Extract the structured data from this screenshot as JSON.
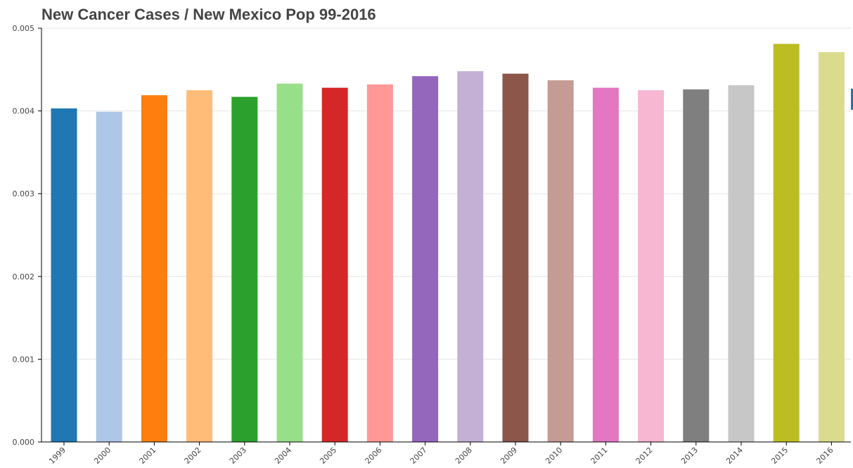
{
  "chart_data": {
    "type": "bar",
    "title": "New Cancer Cases / New Mexico Pop 99-2016",
    "xlabel": "",
    "ylabel": "",
    "ylim": [
      0,
      0.005
    ],
    "yticks": [
      "0.000",
      "0.001",
      "0.002",
      "0.003",
      "0.004",
      "0.005"
    ],
    "grid": true,
    "categories": [
      "1999",
      "2000",
      "2001",
      "2002",
      "2003",
      "2004",
      "2005",
      "2006",
      "2007",
      "2008",
      "2009",
      "2010",
      "2011",
      "2012",
      "2013",
      "2014",
      "2015",
      "2016"
    ],
    "values": [
      0.00403,
      0.00399,
      0.00419,
      0.00425,
      0.00417,
      0.00433,
      0.00428,
      0.00432,
      0.00442,
      0.00448,
      0.00445,
      0.00437,
      0.00428,
      0.00425,
      0.00426,
      0.00431,
      0.00481,
      0.00471
    ],
    "colors": [
      "#1f77b4",
      "#aec7e8",
      "#ff7f0e",
      "#ffbb78",
      "#2ca02c",
      "#98df8a",
      "#d62728",
      "#ff9896",
      "#9467bd",
      "#c5b0d5",
      "#8c564b",
      "#c49c94",
      "#e377c2",
      "#f7b6d2",
      "#7f7f7f",
      "#c7c7c7",
      "#bcbd22",
      "#dbdb8d"
    ]
  }
}
